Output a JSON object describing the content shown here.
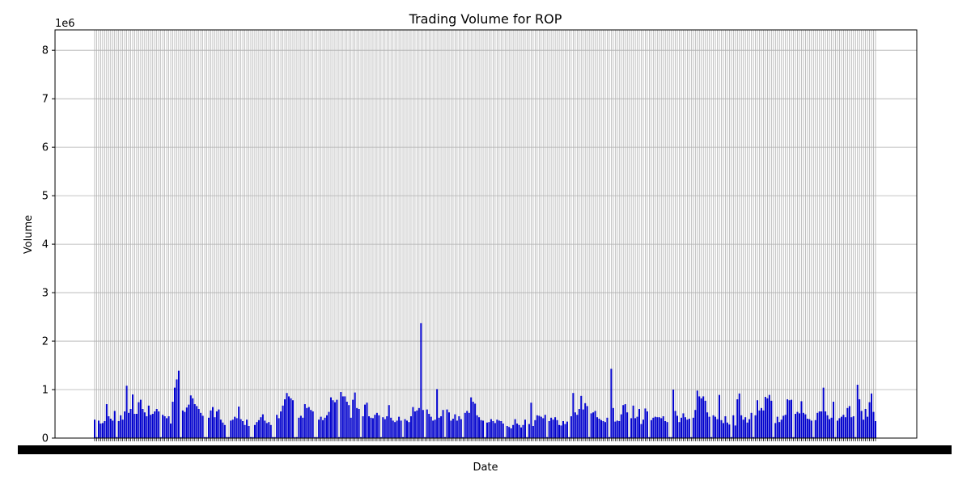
{
  "chart_data": {
    "type": "bar",
    "title": "Trading Volume for ROP",
    "xlabel": "Date",
    "ylabel": "Volume",
    "y_offset_text": "1e6",
    "ylim": [
      0,
      8.42
    ],
    "yticks": [
      0,
      1,
      2,
      3,
      4,
      5,
      6,
      7,
      8
    ],
    "grid": true,
    "bar_color": "#0000cc",
    "grid_color": "#b0b0b0",
    "values": [
      0.38,
      0.02,
      0.36,
      0.3,
      0.31,
      0.35,
      0.7,
      0.45,
      0.4,
      0.36,
      0.56,
      0.02,
      0.35,
      0.47,
      0.38,
      0.55,
      1.08,
      0.52,
      0.6,
      0.9,
      0.5,
      0.5,
      0.74,
      0.79,
      0.6,
      0.53,
      0.45,
      0.67,
      0.48,
      0.5,
      0.55,
      0.6,
      0.55,
      0.02,
      0.48,
      0.45,
      0.41,
      0.45,
      0.3,
      0.75,
      1.04,
      1.21,
      1.39,
      0.02,
      0.57,
      0.54,
      0.63,
      0.69,
      0.88,
      0.82,
      0.7,
      0.66,
      0.6,
      0.52,
      0.46,
      0.02,
      0.02,
      0.42,
      0.57,
      0.64,
      0.43,
      0.55,
      0.59,
      0.38,
      0.32,
      0.27,
      0.02,
      0.02,
      0.36,
      0.38,
      0.44,
      0.41,
      0.65,
      0.39,
      0.35,
      0.27,
      0.38,
      0.25,
      0.02,
      0.02,
      0.27,
      0.33,
      0.37,
      0.43,
      0.49,
      0.36,
      0.31,
      0.33,
      0.27,
      0.02,
      0.02,
      0.48,
      0.41,
      0.55,
      0.67,
      0.8,
      0.93,
      0.86,
      0.82,
      0.78,
      0.02,
      0.02,
      0.42,
      0.46,
      0.42,
      0.7,
      0.62,
      0.64,
      0.58,
      0.55,
      0.02,
      0.02,
      0.38,
      0.44,
      0.37,
      0.42,
      0.47,
      0.54,
      0.84,
      0.78,
      0.74,
      0.79,
      0.02,
      0.95,
      0.86,
      0.86,
      0.75,
      0.68,
      0.42,
      0.79,
      0.94,
      0.62,
      0.6,
      0.02,
      0.45,
      0.69,
      0.73,
      0.45,
      0.42,
      0.41,
      0.48,
      0.52,
      0.47,
      0.02,
      0.43,
      0.39,
      0.45,
      0.68,
      0.42,
      0.36,
      0.33,
      0.36,
      0.44,
      0.36,
      0.02,
      0.39,
      0.36,
      0.33,
      0.45,
      0.64,
      0.55,
      0.57,
      0.62,
      2.37,
      0.58,
      0.02,
      0.59,
      0.5,
      0.44,
      0.36,
      0.38,
      1.01,
      0.42,
      0.45,
      0.58,
      0.02,
      0.59,
      0.53,
      0.36,
      0.4,
      0.49,
      0.36,
      0.45,
      0.39,
      0.02,
      0.52,
      0.56,
      0.52,
      0.84,
      0.75,
      0.71,
      0.47,
      0.43,
      0.37,
      0.36,
      0.02,
      0.32,
      0.33,
      0.39,
      0.35,
      0.31,
      0.38,
      0.36,
      0.35,
      0.3,
      0.02,
      0.25,
      0.23,
      0.2,
      0.27,
      0.39,
      0.3,
      0.27,
      0.22,
      0.27,
      0.38,
      0.02,
      0.29,
      0.73,
      0.25,
      0.37,
      0.47,
      0.46,
      0.44,
      0.41,
      0.48,
      0.02,
      0.35,
      0.42,
      0.38,
      0.43,
      0.37,
      0.27,
      0.26,
      0.35,
      0.29,
      0.34,
      0.02,
      0.45,
      0.93,
      0.53,
      0.48,
      0.6,
      0.87,
      0.59,
      0.72,
      0.66,
      0.02,
      0.51,
      0.53,
      0.56,
      0.43,
      0.4,
      0.37,
      0.35,
      0.33,
      0.42,
      0.02,
      1.43,
      0.62,
      0.34,
      0.36,
      0.35,
      0.49,
      0.68,
      0.7,
      0.53,
      0.02,
      0.41,
      0.67,
      0.41,
      0.44,
      0.6,
      0.29,
      0.38,
      0.61,
      0.55,
      0.02,
      0.37,
      0.42,
      0.44,
      0.43,
      0.43,
      0.41,
      0.45,
      0.35,
      0.33,
      0.02,
      0.02,
      1.0,
      0.56,
      0.46,
      0.33,
      0.42,
      0.51,
      0.43,
      0.38,
      0.4,
      0.02,
      0.42,
      0.58,
      0.98,
      0.86,
      0.82,
      0.86,
      0.77,
      0.53,
      0.44,
      0.02,
      0.47,
      0.44,
      0.39,
      0.89,
      0.37,
      0.31,
      0.45,
      0.32,
      0.28,
      0.02,
      0.47,
      0.26,
      0.8,
      0.92,
      0.47,
      0.38,
      0.43,
      0.32,
      0.39,
      0.52,
      0.02,
      0.47,
      0.78,
      0.57,
      0.62,
      0.57,
      0.85,
      0.82,
      0.89,
      0.77,
      0.02,
      0.31,
      0.44,
      0.33,
      0.38,
      0.46,
      0.48,
      0.8,
      0.78,
      0.79,
      0.02,
      0.5,
      0.54,
      0.51,
      0.76,
      0.52,
      0.49,
      0.4,
      0.39,
      0.36,
      0.02,
      0.37,
      0.52,
      0.55,
      0.55,
      1.04,
      0.55,
      0.47,
      0.39,
      0.42,
      0.75,
      0.02,
      0.36,
      0.41,
      0.44,
      0.48,
      0.43,
      0.62,
      0.66,
      0.43,
      0.45,
      0.02,
      1.1,
      0.8,
      0.56,
      0.38,
      0.6,
      0.44,
      0.74,
      0.92,
      0.54,
      0.35
    ]
  }
}
